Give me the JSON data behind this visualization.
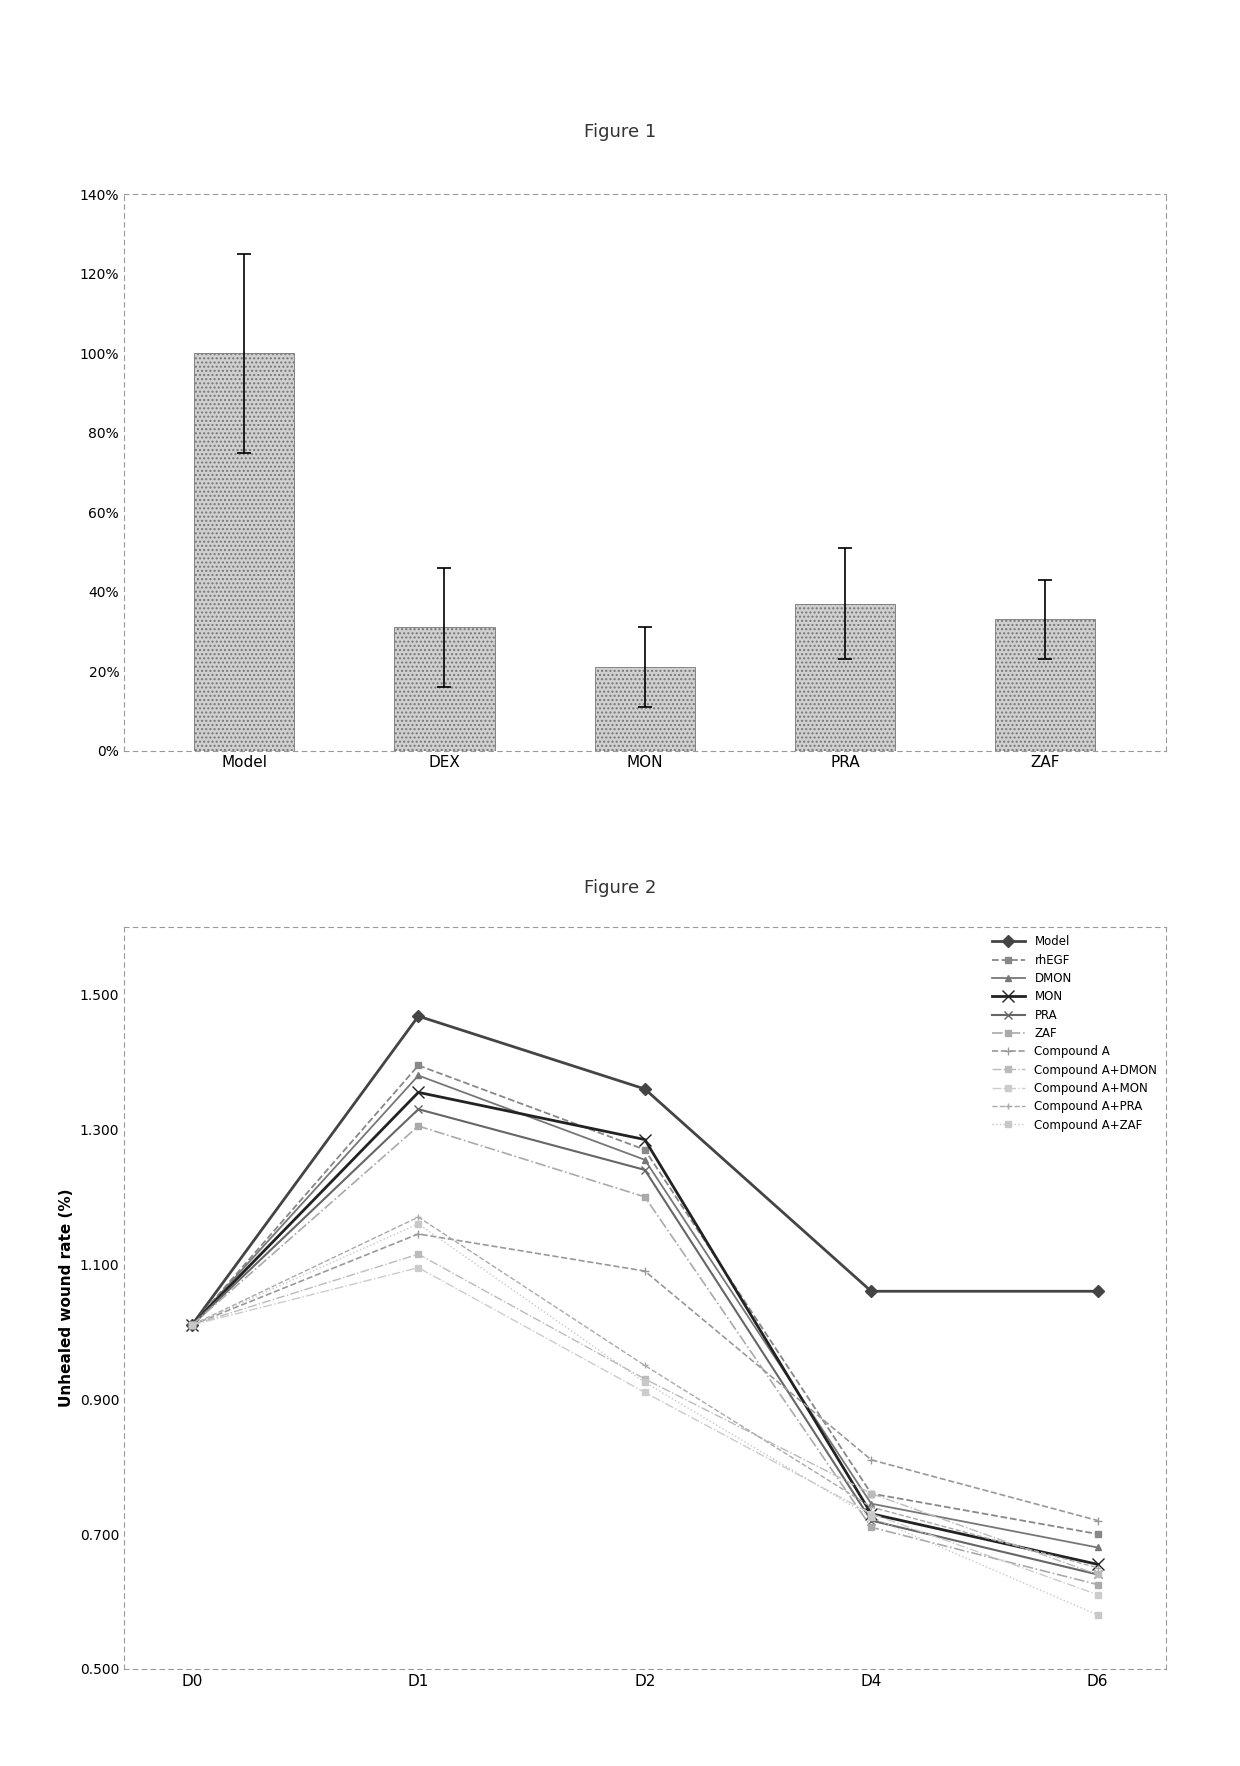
{
  "fig1": {
    "categories": [
      "Model",
      "DEX",
      "MON",
      "PRA",
      "ZAF"
    ],
    "values": [
      100,
      31,
      21,
      37,
      33
    ],
    "errors": [
      25,
      15,
      10,
      14,
      10
    ],
    "bar_color": "#d0d0d0",
    "bar_hatch": "....",
    "ylim": [
      0,
      140
    ],
    "yticks": [
      0,
      20,
      40,
      60,
      80,
      100,
      120,
      140
    ],
    "ytick_labels": [
      "0%",
      "20%",
      "40%",
      "60%",
      "80%",
      "100%",
      "120%",
      "140%"
    ],
    "title": "Figure 1",
    "title_fontsize": 13
  },
  "fig2": {
    "title": "Figure 2",
    "title_fontsize": 13,
    "ylabel": "Unhealed wound rate (%)",
    "xlabels": [
      "D0",
      "D1",
      "D2",
      "D4",
      "D6"
    ],
    "xvals": [
      0,
      1,
      2,
      3,
      4
    ],
    "ylim": [
      0.5,
      1.6
    ],
    "yticks": [
      0.5,
      0.7,
      0.9,
      1.1,
      1.3,
      1.5
    ],
    "series": {
      "Model": {
        "data": [
          1.01,
          1.468,
          1.36,
          1.06,
          1.06
        ],
        "color": "#444444",
        "lw": 2.0,
        "marker": "D",
        "ms": 6,
        "ls": "-"
      },
      "rhEGF": {
        "data": [
          1.01,
          1.395,
          1.27,
          0.76,
          0.7
        ],
        "color": "#888888",
        "lw": 1.3,
        "marker": "s",
        "ms": 5,
        "ls": "--"
      },
      "DMON": {
        "data": [
          1.01,
          1.38,
          1.255,
          0.745,
          0.68
        ],
        "color": "#777777",
        "lw": 1.3,
        "marker": "^",
        "ms": 5,
        "ls": "-"
      },
      "MON": {
        "data": [
          1.01,
          1.355,
          1.285,
          0.73,
          0.655
        ],
        "color": "#222222",
        "lw": 2.0,
        "marker": "x",
        "ms": 8,
        "ls": "-"
      },
      "PRA": {
        "data": [
          1.01,
          1.33,
          1.24,
          0.72,
          0.64
        ],
        "color": "#666666",
        "lw": 1.5,
        "marker": "x",
        "ms": 6,
        "ls": "-"
      },
      "ZAF": {
        "data": [
          1.01,
          1.305,
          1.2,
          0.71,
          0.625
        ],
        "color": "#aaaaaa",
        "lw": 1.2,
        "marker": "s",
        "ms": 4,
        "ls": "-."
      },
      "Compound A": {
        "data": [
          1.01,
          1.145,
          1.09,
          0.81,
          0.72
        ],
        "color": "#999999",
        "lw": 1.2,
        "marker": "+",
        "ms": 6,
        "ls": "--"
      },
      "Compound A+DMON": {
        "data": [
          1.01,
          1.115,
          0.93,
          0.76,
          0.64
        ],
        "color": "#bbbbbb",
        "lw": 1.0,
        "marker": "s",
        "ms": 4,
        "ls": "-."
      },
      "Compound A+MON": {
        "data": [
          1.01,
          1.095,
          0.91,
          0.73,
          0.61
        ],
        "color": "#cccccc",
        "lw": 1.0,
        "marker": "s",
        "ms": 4,
        "ls": "-."
      },
      "Compound A+PRA": {
        "data": [
          1.01,
          1.17,
          0.95,
          0.74,
          0.65
        ],
        "color": "#aaaaaa",
        "lw": 1.0,
        "marker": "+",
        "ms": 5,
        "ls": "--"
      },
      "Compound A+ZAF": {
        "data": [
          1.01,
          1.16,
          0.925,
          0.725,
          0.58
        ],
        "color": "#c8c8c8",
        "lw": 1.0,
        "marker": "s",
        "ms": 4,
        "ls": ":"
      }
    }
  },
  "background_color": "#ffffff",
  "axes_bg": "#ffffff"
}
